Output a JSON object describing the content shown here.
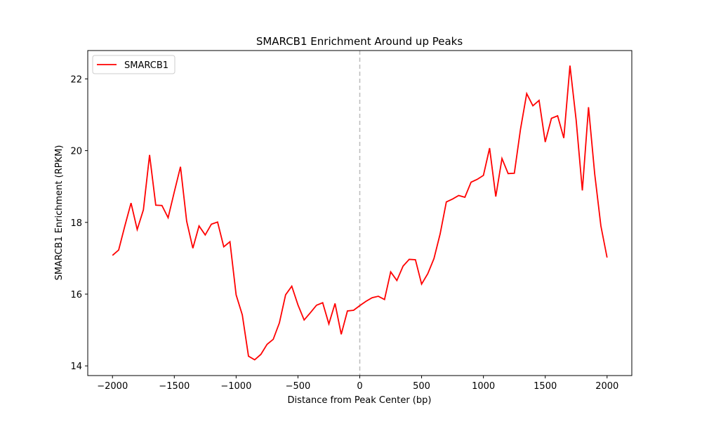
{
  "chart_data": {
    "type": "line",
    "title": "SMARCB1 Enrichment Around up Peaks",
    "x_label": "Distance from Peak Center (bp)",
    "y_label": "SMARCB1 Enrichment (RPKM)",
    "x": [
      -2000,
      -1950,
      -1900,
      -1850,
      -1800,
      -1750,
      -1700,
      -1650,
      -1600,
      -1550,
      -1500,
      -1450,
      -1400,
      -1350,
      -1300,
      -1250,
      -1200,
      -1150,
      -1100,
      -1050,
      -1000,
      -950,
      -900,
      -850,
      -800,
      -750,
      -700,
      -650,
      -600,
      -550,
      -500,
      -450,
      -400,
      -350,
      -300,
      -250,
      -200,
      -150,
      -100,
      -50,
      0,
      50,
      100,
      150,
      200,
      250,
      300,
      350,
      400,
      450,
      500,
      550,
      600,
      650,
      700,
      750,
      800,
      850,
      900,
      950,
      1000,
      1050,
      1100,
      1150,
      1200,
      1250,
      1300,
      1350,
      1400,
      1450,
      1500,
      1550,
      1600,
      1650,
      1700,
      1750,
      1800,
      1850,
      1900,
      1950,
      2000
    ],
    "series": [
      {
        "name": "SMARCB1",
        "color": "#ff0000",
        "values": [
          17.08,
          17.23,
          17.9,
          18.54,
          17.8,
          18.35,
          19.88,
          18.48,
          18.47,
          18.13,
          18.85,
          19.55,
          18.03,
          17.28,
          17.9,
          17.65,
          17.95,
          18.01,
          17.32,
          17.46,
          15.98,
          15.42,
          14.27,
          14.17,
          14.32,
          14.6,
          14.74,
          15.2,
          15.98,
          16.22,
          15.7,
          15.28,
          15.48,
          15.69,
          15.76,
          15.17,
          15.74,
          14.88,
          15.53,
          15.55,
          15.68,
          15.8,
          15.9,
          15.94,
          15.85,
          16.62,
          16.38,
          16.78,
          16.97,
          16.96,
          16.28,
          16.57,
          16.99,
          17.68,
          18.57,
          18.65,
          18.75,
          18.7,
          19.12,
          19.2,
          19.31,
          20.07,
          18.72,
          19.78,
          19.36,
          19.37,
          20.6,
          21.59,
          21.25,
          21.4,
          20.24,
          20.9,
          20.97,
          20.35,
          22.37,
          20.85,
          18.89,
          21.21,
          19.35,
          17.9,
          17.02
        ]
      }
    ],
    "vline": 0,
    "xlim": [
      -2200,
      2200
    ],
    "ylim": [
      13.73,
      22.79
    ],
    "xticks": [
      {
        "value": -2000,
        "label": "−2000"
      },
      {
        "value": -1500,
        "label": "−1500"
      },
      {
        "value": -1000,
        "label": "−1000"
      },
      {
        "value": -500,
        "label": "−500"
      },
      0,
      500,
      1000,
      1500,
      2000
    ],
    "yticks": [
      14,
      16,
      18,
      20,
      22
    ],
    "legend": "upper left"
  }
}
